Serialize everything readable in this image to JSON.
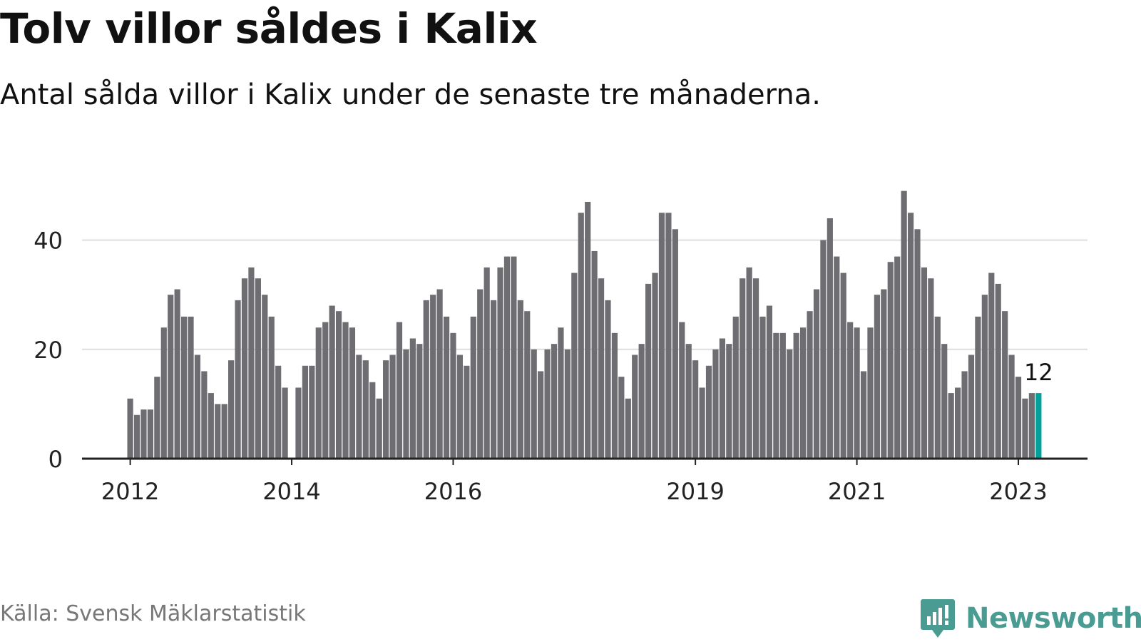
{
  "title": "Tolv villor såldes i Kalix",
  "subtitle": "Antal sålda villor i Kalix under de senaste tre månaderna.",
  "source": "Källa: Svensk Mäklarstatistik",
  "brand": {
    "name": "Newsworthy",
    "icon": "newsworthy-logo-icon",
    "color": "#4a9b91"
  },
  "colors": {
    "bar": "#6e6d72",
    "highlight": "#00a19a",
    "grid": "#dddddd",
    "axis": "#222222"
  },
  "chart_data": {
    "type": "bar",
    "title": "Tolv villor såldes i Kalix",
    "subtitle": "Antal sålda villor i Kalix under de senaste tre månaderna.",
    "xlabel": "",
    "ylabel": "",
    "ylim": [
      0,
      50
    ],
    "yticks": [
      0,
      20,
      40
    ],
    "grid": true,
    "legend": "none",
    "x_start": "2012-01",
    "x_tick_labels": [
      "2012",
      "2014",
      "2016",
      "2019",
      "2021",
      "2023"
    ],
    "values": [
      11,
      8,
      9,
      9,
      15,
      24,
      30,
      31,
      26,
      26,
      19,
      16,
      12,
      10,
      10,
      18,
      29,
      33,
      35,
      33,
      30,
      26,
      17,
      13,
      0,
      13,
      17,
      17,
      24,
      25,
      28,
      27,
      25,
      24,
      19,
      18,
      14,
      11,
      18,
      19,
      25,
      20,
      22,
      21,
      29,
      30,
      31,
      26,
      23,
      19,
      17,
      26,
      31,
      35,
      29,
      35,
      37,
      37,
      29,
      27,
      20,
      16,
      20,
      21,
      24,
      20,
      34,
      45,
      47,
      38,
      33,
      29,
      23,
      15,
      11,
      19,
      21,
      32,
      34,
      45,
      45,
      42,
      25,
      21,
      18,
      13,
      17,
      20,
      22,
      21,
      26,
      33,
      35,
      33,
      26,
      28,
      23,
      23,
      20,
      23,
      24,
      27,
      31,
      40,
      44,
      37,
      34,
      25,
      24,
      16,
      24,
      30,
      31,
      36,
      37,
      49,
      45,
      42,
      35,
      33,
      26,
      21,
      12,
      13,
      16,
      19,
      26,
      30,
      34,
      32,
      27,
      19,
      15,
      11,
      12,
      12
    ],
    "highlight_value": 12,
    "highlight_label": "12"
  }
}
